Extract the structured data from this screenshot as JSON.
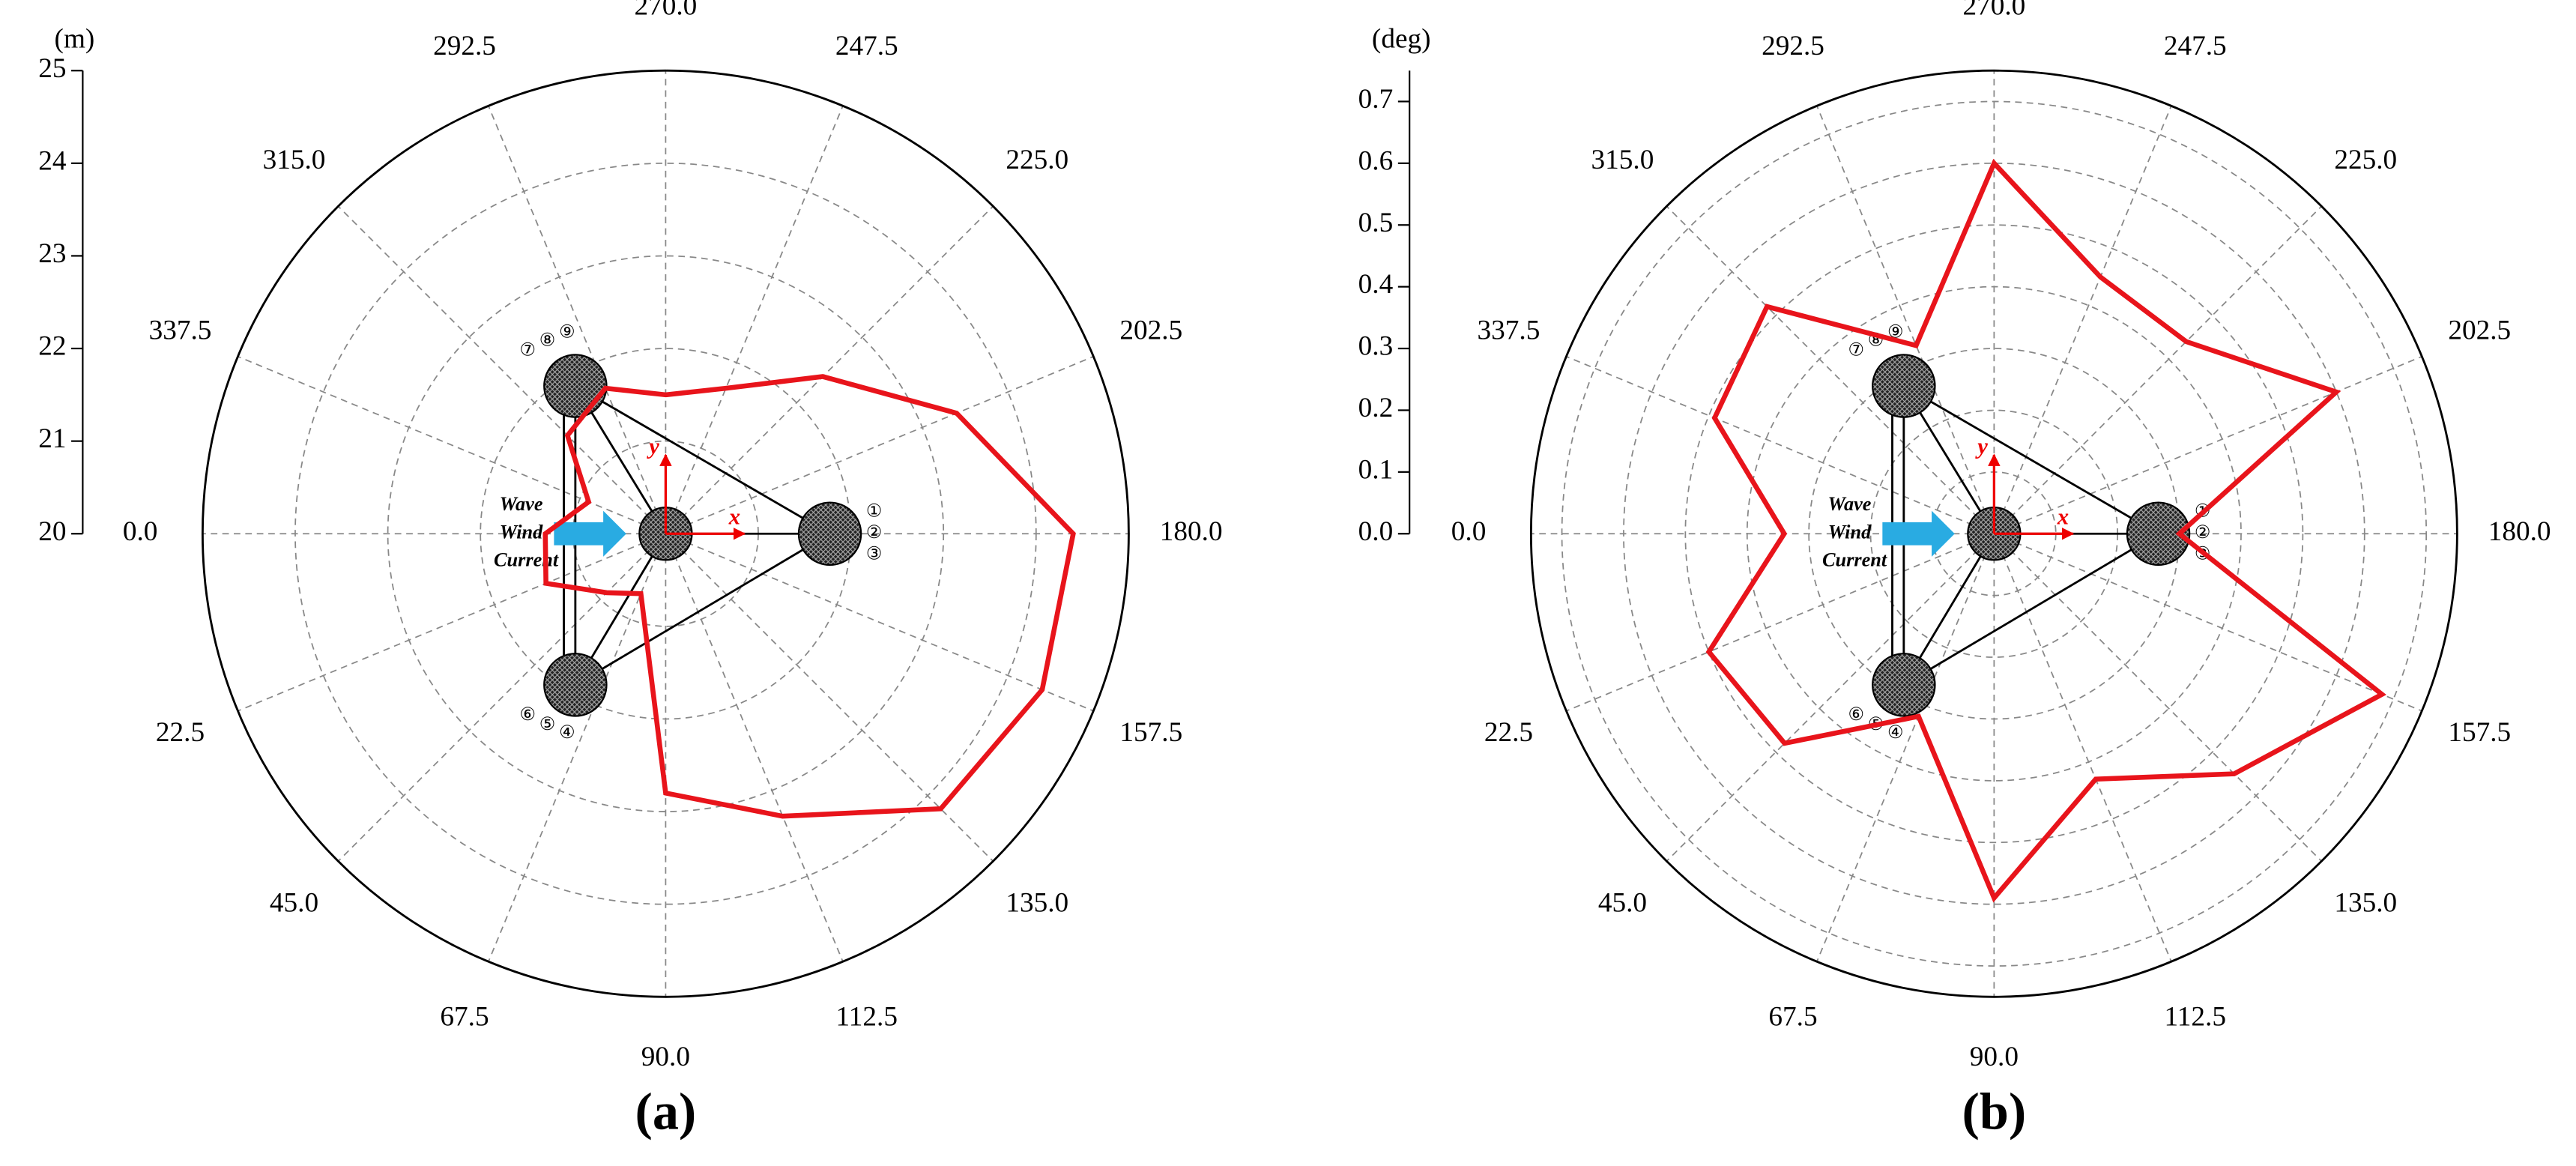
{
  "chart_data": [
    {
      "type": "polar",
      "label": "(a)",
      "y_label": "(m)",
      "x": [
        0,
        22.5,
        45,
        67.5,
        90,
        112.5,
        135,
        157.5,
        180,
        202.5,
        225,
        247.5,
        270,
        292.5,
        315,
        337.5
      ],
      "series": [
        {
          "color": "#e8141b",
          "values": [
            21.3,
            21.4,
            20.9,
            20.7,
            22.8,
            23.3,
            24.2,
            24.4,
            24.4,
            23.4,
            22.4,
            21.7,
            21.5,
            21.7,
            21.5,
            20.9
          ]
        }
      ],
      "xticks": [
        {
          "value": 0,
          "label": "0.0"
        },
        {
          "value": 22.5,
          "label": "22.5"
        },
        {
          "value": 45,
          "label": "45.0"
        },
        {
          "value": 67.5,
          "label": "67.5"
        },
        {
          "value": 90,
          "label": "90.0"
        },
        {
          "value": 112.5,
          "label": "112.5"
        },
        {
          "value": 135,
          "label": "135.0"
        },
        {
          "value": 157.5,
          "label": "157.5"
        },
        {
          "value": 180,
          "label": "180.0"
        },
        {
          "value": 202.5,
          "label": "202.5"
        },
        {
          "value": 225,
          "label": "225.0"
        },
        {
          "value": 247.5,
          "label": "247.5"
        },
        {
          "value": 270,
          "label": "270.0"
        },
        {
          "value": 292.5,
          "label": "292.5"
        },
        {
          "value": 315,
          "label": "315.0"
        },
        {
          "value": 337.5,
          "label": "337.5"
        }
      ],
      "ylim": [
        20,
        25
      ],
      "yticks": [
        20,
        21,
        22,
        23,
        24,
        25
      ],
      "grid": true,
      "annotations": [
        "Wave",
        "Wind",
        "Current",
        "x",
        "y",
        "①",
        "②",
        "③",
        "④",
        "⑤",
        "⑥",
        "⑦",
        "⑧",
        "⑨"
      ]
    },
    {
      "type": "polar",
      "label": "(b)",
      "y_label": "(deg)",
      "x": [
        0,
        22.5,
        45,
        67.5,
        90,
        112.5,
        135,
        157.5,
        180,
        202.5,
        225,
        247.5,
        270,
        292.5,
        315,
        337.5
      ],
      "series": [
        {
          "color": "#e8141b",
          "values": [
            0.34,
            0.5,
            0.48,
            0.32,
            0.59,
            0.43,
            0.55,
            0.68,
            0.3,
            0.6,
            0.44,
            0.45,
            0.6,
            0.33,
            0.52,
            0.49
          ]
        }
      ],
      "xticks": [
        {
          "value": 0,
          "label": "0.0"
        },
        {
          "value": 22.5,
          "label": "22.5"
        },
        {
          "value": 45,
          "label": "45.0"
        },
        {
          "value": 67.5,
          "label": "67.5"
        },
        {
          "value": 90,
          "label": "90.0"
        },
        {
          "value": 112.5,
          "label": "112.5"
        },
        {
          "value": 135,
          "label": "135.0"
        },
        {
          "value": 157.5,
          "label": "157.5"
        },
        {
          "value": 180,
          "label": "180.0"
        },
        {
          "value": 202.5,
          "label": "202.5"
        },
        {
          "value": 225,
          "label": "225.0"
        },
        {
          "value": 247.5,
          "label": "247.5"
        },
        {
          "value": 270,
          "label": "270.0"
        },
        {
          "value": 292.5,
          "label": "292.5"
        },
        {
          "value": 315,
          "label": "315.0"
        },
        {
          "value": 337.5,
          "label": "337.5"
        }
      ],
      "ylim": [
        0,
        0.75
      ],
      "yticks": [
        {
          "value": 0,
          "label": "0.0"
        },
        0.1,
        0.2,
        0.3,
        0.4,
        0.5,
        0.6,
        0.7
      ],
      "grid": true,
      "annotations": [
        "Wave",
        "Wind",
        "Current",
        "x",
        "y",
        "①",
        "②",
        "③",
        "④",
        "⑤",
        "⑥",
        "⑦",
        "⑧",
        "⑨"
      ]
    }
  ]
}
